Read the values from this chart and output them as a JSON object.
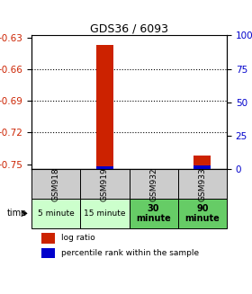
{
  "title": "GDS36 / 6093",
  "samples": [
    "GSM918",
    "GSM919",
    "GSM932",
    "GSM933"
  ],
  "time_labels": [
    "5 minute",
    "15 minute",
    "30\nminute",
    "90\nminute"
  ],
  "time_colors": [
    "#ccffcc",
    "#ccffcc",
    "#66cc66",
    "#66cc66"
  ],
  "gsm_bg_color": "#cccccc",
  "log_ratios": [
    null,
    -0.637,
    null,
    -0.742
  ],
  "percentile_ranks": [
    null,
    2,
    null,
    3
  ],
  "ylim": [
    -0.755,
    -0.628
  ],
  "yticks": [
    -0.75,
    -0.72,
    -0.69,
    -0.66,
    -0.63
  ],
  "y2ticks": [
    0,
    25,
    50,
    75,
    100
  ],
  "y2lim": [
    -1.56,
    100
  ],
  "bar_width": 0.35,
  "bar_color_red": "#cc2200",
  "bar_color_blue": "#0000cc",
  "grid_color": "#000000",
  "left_label_color": "#cc2200",
  "right_label_color": "#0000cc",
  "title_color": "#000000",
  "legend_red_label": "log ratio",
  "legend_blue_label": "percentile rank within the sample",
  "time_arrow_label": "time"
}
